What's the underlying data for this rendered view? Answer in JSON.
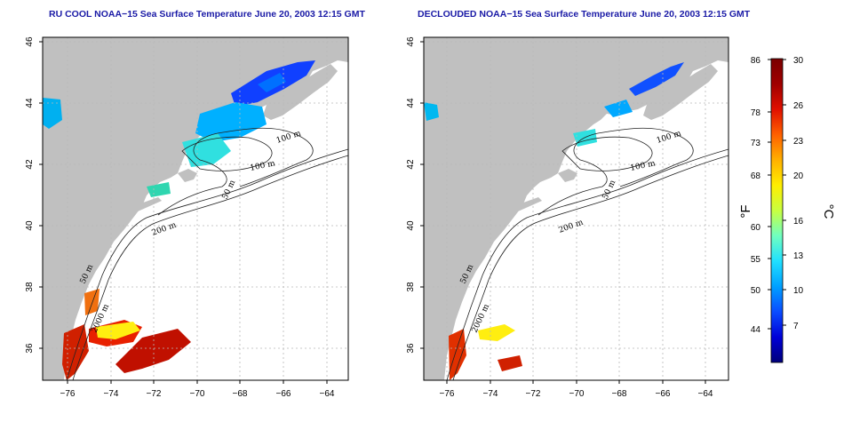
{
  "maps": [
    {
      "title": "RU COOL NOAA−15 Sea Surface Temperature June 20, 2003 12:15 GMT"
    },
    {
      "title": "DECLOUDED NOAA−15 Sea Surface Temperature June 20, 2003 12:15 GMT"
    }
  ],
  "axes": {
    "lat_ticks": [
      "46",
      "44",
      "42",
      "40",
      "38",
      "36"
    ],
    "lon_ticks": [
      "−76",
      "−74",
      "−72",
      "−70",
      "−68",
      "−66",
      "−64"
    ]
  },
  "contours": {
    "labels": [
      "100 m",
      "100 m",
      "50 m",
      "200 m",
      "50 m",
      "2000 m"
    ]
  },
  "colorbar": {
    "fahrenheit_ticks": [
      "86",
      "78",
      "73",
      "68",
      "60",
      "55",
      "50",
      "44"
    ],
    "celsius_ticks": [
      "30",
      "26",
      "23",
      "20",
      "16",
      "13",
      "10",
      "7"
    ],
    "fahrenheit_unit": "°F",
    "celsius_unit": "°C",
    "colors": [
      "#00007a",
      "#0000d8",
      "#0a4cff",
      "#00a0ff",
      "#20e0ff",
      "#70ffc0",
      "#c8ff40",
      "#ffee00",
      "#ffb000",
      "#ff6000",
      "#e01000",
      "#a00000",
      "#7a0000"
    ]
  },
  "colors": {
    "land": "#c0c0c0",
    "ocean": "#ffffff",
    "title": "#1a1aa6",
    "grid": "#b8b8b8"
  }
}
